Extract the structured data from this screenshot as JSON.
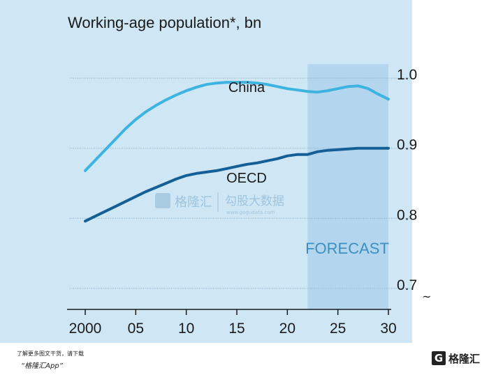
{
  "chart_data": {
    "type": "line",
    "title": "Working-age population*, bn",
    "x_ticks": [
      2000,
      2005,
      2010,
      2015,
      2020,
      2025,
      2030
    ],
    "x_tick_labels": [
      "2000",
      "05",
      "10",
      "15",
      "20",
      "25",
      "30"
    ],
    "y_ticks": [
      0.7,
      0.8,
      0.9,
      1.0
    ],
    "y_tick_labels": [
      "0.7",
      "0.8",
      "0.9",
      "1.0"
    ],
    "xlim": [
      2000,
      2030
    ],
    "ylim": [
      0.67,
      1.02
    ],
    "forecast_start": 2022,
    "forecast_label": "FORECAST",
    "axis_break": "~",
    "series": [
      {
        "name": "China",
        "color": "#3db3e0",
        "x": [
          2000,
          2001,
          2002,
          2003,
          2004,
          2005,
          2006,
          2007,
          2008,
          2009,
          2010,
          2011,
          2012,
          2013,
          2014,
          2015,
          2016,
          2017,
          2018,
          2019,
          2020,
          2021,
          2022,
          2023,
          2024,
          2025,
          2026,
          2027,
          2028,
          2029,
          2030
        ],
        "values": [
          0.868,
          0.883,
          0.898,
          0.913,
          0.928,
          0.941,
          0.952,
          0.961,
          0.969,
          0.976,
          0.982,
          0.987,
          0.991,
          0.993,
          0.994,
          0.994,
          0.994,
          0.993,
          0.991,
          0.988,
          0.985,
          0.983,
          0.981,
          0.98,
          0.982,
          0.985,
          0.988,
          0.989,
          0.985,
          0.977,
          0.97
        ]
      },
      {
        "name": "OECD",
        "color": "#155f97",
        "x": [
          2000,
          2001,
          2002,
          2003,
          2004,
          2005,
          2006,
          2007,
          2008,
          2009,
          2010,
          2011,
          2012,
          2013,
          2014,
          2015,
          2016,
          2017,
          2018,
          2019,
          2020,
          2021,
          2022,
          2023,
          2024,
          2025,
          2026,
          2027,
          2028,
          2029,
          2030
        ],
        "values": [
          0.796,
          0.803,
          0.81,
          0.817,
          0.824,
          0.831,
          0.838,
          0.844,
          0.85,
          0.856,
          0.861,
          0.864,
          0.866,
          0.868,
          0.871,
          0.874,
          0.877,
          0.879,
          0.882,
          0.885,
          0.889,
          0.891,
          0.891,
          0.895,
          0.897,
          0.898,
          0.899,
          0.9,
          0.9,
          0.9,
          0.9
        ]
      }
    ]
  },
  "watermark": {
    "brand": "格隆汇",
    "partner": "勾股大数据",
    "partner_url": "www.gogudata.com"
  },
  "footer": {
    "line1": "了解更多图文干货，请下载",
    "line2": "“格隆汇App”",
    "logo_letter": "G",
    "logo_text": "格隆汇"
  }
}
